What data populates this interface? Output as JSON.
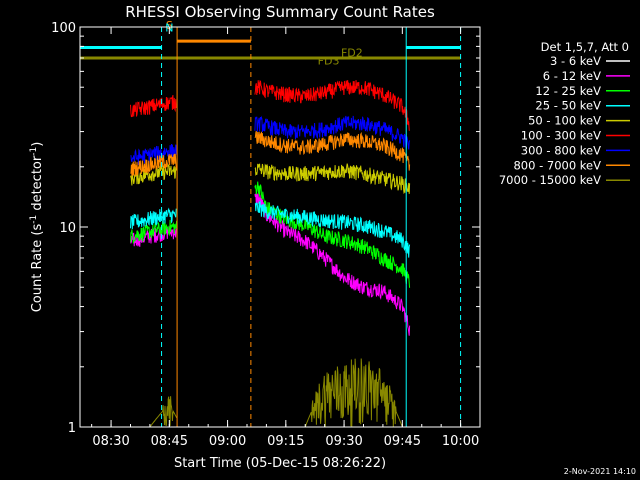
{
  "chart_data": {
    "type": "line",
    "title": "RHESSI Observing Summary Count Rates",
    "xlabel": "Start Time (05-Dec-15 08:26:22)",
    "ylabel_main": "Count Rate (s",
    "ylabel_sup1": "-1",
    "ylabel_mid": " detector",
    "ylabel_sup2": "-1",
    "ylabel_end": ")",
    "x_range_minutes": [
      "08:22",
      "10:05"
    ],
    "y_scale": "log",
    "ylim": [
      1,
      100
    ],
    "x_ticks": [
      "08:30",
      "08:45",
      "09:00",
      "09:15",
      "09:30",
      "09:45",
      "10:00"
    ],
    "y_ticks": [
      "1",
      "10",
      "100"
    ],
    "legend_title": "Det 1,5,7, Att 0",
    "legend_placement": "top-right outside plot",
    "grid": false,
    "footer_stamp": "2-Nov-2021 14:10",
    "data_gaps": [
      [
        "08:47",
        "09:07"
      ],
      [
        "09:47",
        "10:05"
      ]
    ],
    "series": [
      {
        "name": "3 - 6 keV",
        "color": "#000000",
        "x": [
          "08:35",
          "08:40",
          "08:45",
          "08:48",
          "09:08",
          "09:10",
          "09:15",
          "09:20",
          "09:25",
          "09:30",
          "09:35",
          "09:40",
          "09:45",
          "09:47"
        ],
        "values": [
          7.5,
          8.0,
          8.3,
          8.3,
          18,
          10.5,
          8.8,
          8.4,
          8.2,
          8.0,
          7.6,
          7.0,
          5.2,
          3.2
        ]
      },
      {
        "name": "6 - 12 keV",
        "color": "#ff00ff",
        "x": [
          "08:35",
          "08:40",
          "08:45",
          "08:48",
          "09:08",
          "09:10",
          "09:15",
          "09:20",
          "09:25",
          "09:30",
          "09:35",
          "09:40",
          "09:45",
          "09:47"
        ],
        "values": [
          8.5,
          9.0,
          9.5,
          9.5,
          14,
          11.5,
          9.5,
          8.5,
          7.0,
          5.6,
          5.0,
          4.8,
          4.0,
          3.0
        ]
      },
      {
        "name": "12 - 25 keV",
        "color": "#00ff00",
        "x": [
          "08:35",
          "08:40",
          "08:45",
          "08:48",
          "09:08",
          "09:10",
          "09:15",
          "09:20",
          "09:25",
          "09:30",
          "09:35",
          "09:40",
          "09:45",
          "09:47"
        ],
        "values": [
          9.0,
          9.5,
          10.0,
          10.0,
          16,
          12.5,
          11,
          10.2,
          9.0,
          8.6,
          8.0,
          7.0,
          6.2,
          5.2
        ]
      },
      {
        "name": "25 - 50 keV",
        "color": "#00ffff",
        "x": [
          "08:35",
          "08:40",
          "08:45",
          "08:48",
          "09:08",
          "09:10",
          "09:15",
          "09:20",
          "09:25",
          "09:30",
          "09:35",
          "09:40",
          "09:45",
          "09:47"
        ],
        "values": [
          10.5,
          11.0,
          11.5,
          11.5,
          12.5,
          12.0,
          11.5,
          11.2,
          10.8,
          10.6,
          10.2,
          9.6,
          8.6,
          7.5
        ]
      },
      {
        "name": "50 - 100 keV",
        "color": "#cccc00",
        "x": [
          "08:35",
          "08:40",
          "08:45",
          "08:48",
          "09:08",
          "09:10",
          "09:15",
          "09:20",
          "09:25",
          "09:30",
          "09:35",
          "09:40",
          "09:45",
          "09:47"
        ],
        "values": [
          17.5,
          18.5,
          19.0,
          19.0,
          19.5,
          19.0,
          18.5,
          18.5,
          18.8,
          19.2,
          18.5,
          17.5,
          16.5,
          15.5
        ]
      },
      {
        "name": "100 - 300 keV",
        "color": "#ff0000",
        "x": [
          "08:35",
          "08:40",
          "08:45",
          "08:48",
          "09:08",
          "09:10",
          "09:15",
          "09:20",
          "09:25",
          "09:30",
          "09:35",
          "09:40",
          "09:45",
          "09:47"
        ],
        "values": [
          38,
          40,
          42,
          42,
          50,
          48,
          46,
          45,
          47,
          50,
          50,
          46,
          40,
          32
        ]
      },
      {
        "name": "300 - 800 keV",
        "color": "#0000ff",
        "x": [
          "08:35",
          "08:40",
          "08:45",
          "08:48",
          "09:08",
          "09:10",
          "09:15",
          "09:20",
          "09:25",
          "09:30",
          "09:35",
          "09:40",
          "09:45",
          "09:47"
        ],
        "values": [
          22,
          23,
          24,
          24,
          33,
          32,
          30,
          30,
          31,
          33,
          33,
          31,
          28,
          25
        ]
      },
      {
        "name": "800 - 7000 keV",
        "color": "#ff8800",
        "x": [
          "08:35",
          "08:40",
          "08:45",
          "08:48",
          "09:08",
          "09:10",
          "09:15",
          "09:20",
          "09:25",
          "09:30",
          "09:35",
          "09:40",
          "09:45",
          "09:47"
        ],
        "values": [
          19.5,
          20.5,
          21.5,
          21.5,
          28,
          27,
          25.5,
          25,
          26,
          27.5,
          27,
          25.5,
          23,
          20
        ]
      },
      {
        "name": "7000 - 15000 keV",
        "color": "#888800",
        "x": [
          "08:35",
          "08:40",
          "08:45",
          "08:48",
          "09:08",
          "09:10",
          "09:15",
          "09:20",
          "09:25",
          "09:30",
          "09:35",
          "09:40",
          "09:45",
          "09:47"
        ],
        "values": [
          1.0,
          1.0,
          1.3,
          1.0,
          1.0,
          1.0,
          1.0,
          1.0,
          1.6,
          1.7,
          1.8,
          1.6,
          1.0,
          1.0
        ]
      }
    ],
    "flags": [
      {
        "label": "S",
        "color": "#ff8800",
        "x": [
          "08:44",
          "08:45"
        ],
        "y": 98
      },
      {
        "label": "N",
        "color": "#00ffff",
        "x": [
          "08:44",
          "08:45"
        ],
        "y": 95
      },
      {
        "label": "FD2",
        "color": "#888800",
        "x": [
          "09:27",
          "09:32"
        ],
        "y": 71
      },
      {
        "label": "FD3",
        "color": "#888800",
        "x": [
          "09:22",
          "09:26"
        ],
        "y": 65
      }
    ],
    "bars": [
      {
        "name": "saa-bar",
        "color": "#ff8800",
        "x": [
          "08:47",
          "09:06"
        ],
        "y": 85
      },
      {
        "name": "night-bar-1",
        "color": "#00ffff",
        "x": [
          "08:22",
          "08:43"
        ],
        "y": 79
      },
      {
        "name": "night-bar-2",
        "color": "#00ffff",
        "x": [
          "09:46",
          "10:00"
        ],
        "y": 79
      },
      {
        "name": "flare-bar",
        "color": "#888800",
        "x": [
          "08:22",
          "10:00"
        ],
        "y": 70
      }
    ],
    "vlines": [
      {
        "color": "#00ffff",
        "style": "dashed",
        "x": "08:43"
      },
      {
        "color": "#ff8800",
        "style": "solid",
        "x": "08:47"
      },
      {
        "color": "#ff8800",
        "style": "dashed",
        "x": "09:06"
      },
      {
        "color": "#00ffff",
        "style": "solid",
        "x": "09:46"
      },
      {
        "color": "#00ffff",
        "style": "dashed",
        "x": "10:00"
      }
    ]
  }
}
